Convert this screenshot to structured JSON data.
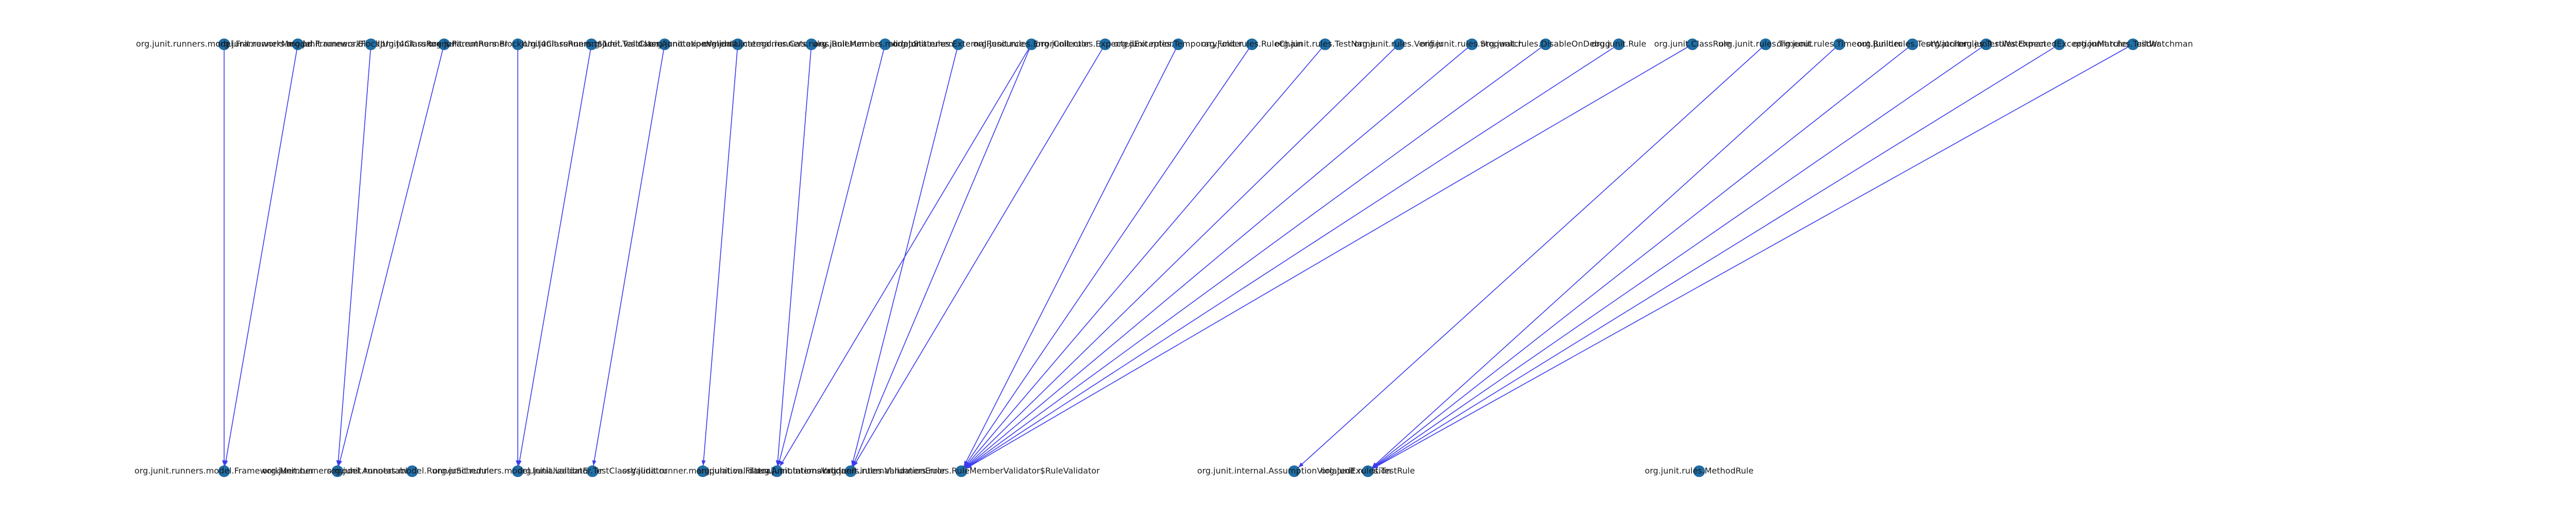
{
  "diagram": {
    "type": "directed-graph",
    "accent_colors": {
      "edge": "#3b3bf0",
      "node": "#1f6fa8",
      "text": "#1a1a1a"
    },
    "top_row": [
      {
        "id": "t1",
        "label": "org.junit.runners.model.FrameworkMethod"
      },
      {
        "id": "t2",
        "label": "org.junit.runners.model.FrameworkField"
      },
      {
        "id": "t3",
        "label": "org.junit.runners.BlockJUnit4ClassRunner"
      },
      {
        "id": "t4",
        "label": "org.junit.runners.ParentRunner"
      },
      {
        "id": "t5",
        "label": "org.junit.runners.BlockJUnit4ClassRunner$1"
      },
      {
        "id": "t6",
        "label": "org.junit.runners.model.TestClass"
      },
      {
        "id": "t7",
        "label": "org.junit.validator.AnnotationValidator"
      },
      {
        "id": "t8",
        "label": "org.junit.experimental.categories.Category"
      },
      {
        "id": "t9",
        "label": "org.junit.internal.runners.rules.RuleMemberValidator"
      },
      {
        "id": "t10",
        "label": "org.junit.runners.model.Statement"
      },
      {
        "id": "t11",
        "label": "org.junit.rules.ExternalResource"
      },
      {
        "id": "t12",
        "label": "org.junit.rules.ErrorCollector"
      },
      {
        "id": "t13",
        "label": "org.junit.rules.ExpectedException"
      },
      {
        "id": "t14",
        "label": "org.junit.rules.TemporaryFolder"
      },
      {
        "id": "t15",
        "label": "org.junit.rules.RuleChain"
      },
      {
        "id": "t16",
        "label": "org.junit.rules.TestName"
      },
      {
        "id": "t17",
        "label": "org.junit.rules.Verifier"
      },
      {
        "id": "t18",
        "label": "org.junit.rules.Stopwatch"
      },
      {
        "id": "t19",
        "label": "org.junit.rules.DisableOnDebug"
      },
      {
        "id": "t20",
        "label": "org.junit.Rule"
      },
      {
        "id": "t21",
        "label": "org.junit.ClassRule"
      },
      {
        "id": "t22",
        "label": "org.junit.rules.Timeout"
      },
      {
        "id": "t23",
        "label": "org.junit.rules.Timeout.Builder"
      },
      {
        "id": "t24",
        "label": "org.junit.rules.TestWatcher"
      },
      {
        "id": "t25",
        "label": "org.junit.rules.TestWatchman"
      },
      {
        "id": "t26",
        "label": "org.junit.rules.ExpectedExceptionMatcherBuilder"
      },
      {
        "id": "t27",
        "label": "org.junit.rules.TestWatchman"
      }
    ],
    "bottom_row": [
      {
        "id": "b1",
        "label": "org.junit.runners.model.FrameworkMember"
      },
      {
        "id": "b2",
        "label": "org.junit.runners.model.Annotatable"
      },
      {
        "id": "b3",
        "label": "org.junit.runners.model.RunnerScheduler"
      },
      {
        "id": "b4",
        "label": "org.junit.runners.model.InitializationError"
      },
      {
        "id": "b5",
        "label": "org.junit.validator.TestClassValidator"
      },
      {
        "id": "b6",
        "label": "org.junit.runner.manipulation.Filterable"
      },
      {
        "id": "b7",
        "label": "org.junit.validator.AnnotationsValidator"
      },
      {
        "id": "b8",
        "label": "org.junit.internal.runners.rules.ValidationError"
      },
      {
        "id": "b9",
        "label": "org.junit.internal.runners.rules.RuleMemberValidator$RuleValidator"
      },
      {
        "id": "b10",
        "label": "org.junit.internal.AssumptionViolatedException"
      },
      {
        "id": "b11",
        "label": "org.junit.rules.TestRule"
      },
      {
        "id": "b12",
        "label": "org.junit.rules.MethodRule"
      }
    ],
    "edges": [
      [
        "t1",
        "b1"
      ],
      [
        "t2",
        "b1"
      ],
      [
        "t3",
        "b2"
      ],
      [
        "t4",
        "b2"
      ],
      [
        "t5",
        "b4"
      ],
      [
        "t6",
        "b4"
      ],
      [
        "t7",
        "b5"
      ],
      [
        "t8",
        "b6"
      ],
      [
        "t9",
        "b7"
      ],
      [
        "t10",
        "b7"
      ],
      [
        "t12",
        "b7"
      ],
      [
        "t11",
        "b8"
      ],
      [
        "t12",
        "b8"
      ],
      [
        "t13",
        "b8"
      ],
      [
        "t14",
        "b9"
      ],
      [
        "t15",
        "b9"
      ],
      [
        "t16",
        "b9"
      ],
      [
        "t17",
        "b9"
      ],
      [
        "t18",
        "b9"
      ],
      [
        "t19",
        "b9"
      ],
      [
        "t20",
        "b9"
      ],
      [
        "t21",
        "b9"
      ],
      [
        "t22",
        "b10"
      ],
      [
        "t24",
        "b11"
      ],
      [
        "t25",
        "b11"
      ],
      [
        "t26",
        "b11"
      ],
      [
        "t23",
        "b11"
      ],
      [
        "t27",
        "b11"
      ],
      [
        "t29",
        "b12"
      ]
    ]
  }
}
